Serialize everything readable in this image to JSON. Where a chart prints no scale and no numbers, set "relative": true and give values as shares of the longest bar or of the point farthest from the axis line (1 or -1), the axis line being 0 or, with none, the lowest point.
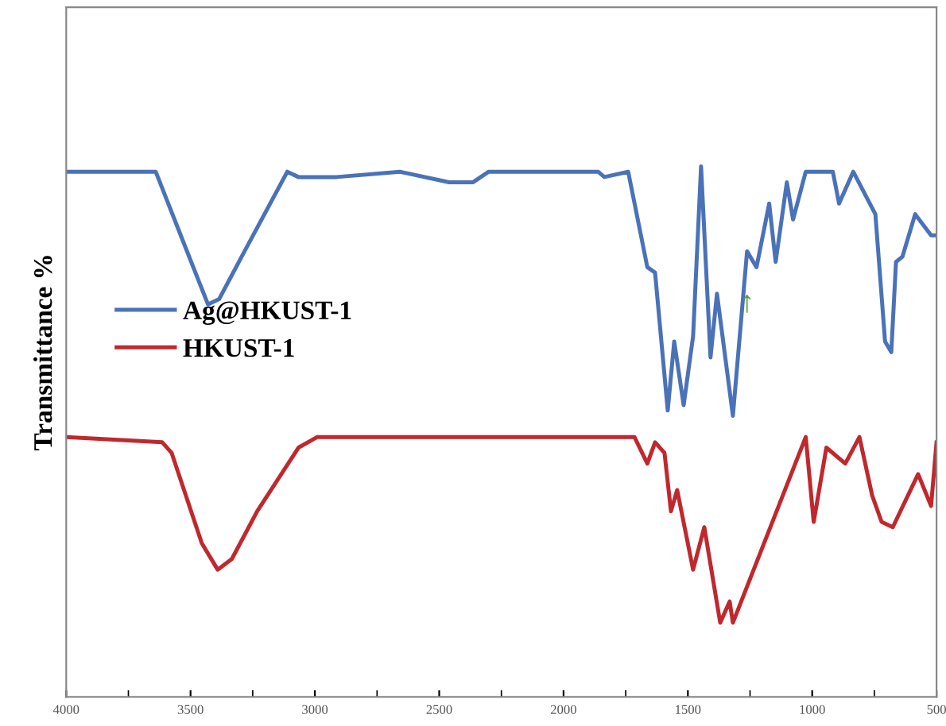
{
  "chart_data": {
    "type": "line",
    "ylabel": "Transmittance %",
    "relative": true,
    "tick_labels": "x",
    "legend": "center left",
    "grid": false,
    "xlim": [
      4000,
      500
    ],
    "xticks": [
      4000,
      3500,
      3000,
      2500,
      2000,
      1500,
      1000,
      500
    ],
    "annotations": [
      {
        "text": "↑",
        "x": 1262,
        "y": 0.74
      }
    ],
    "series": [
      {
        "name": "Ag@HKUST-1",
        "color": "#4a72b8",
        "x": [
          4000,
          3640,
          3531,
          3430,
          3385,
          3283,
          3111,
          3066,
          2913,
          2658,
          2460,
          2365,
          2301,
          1861,
          1836,
          1740,
          1663,
          1632,
          1581,
          1555,
          1517,
          1479,
          1447,
          1409,
          1383,
          1319,
          1262,
          1224,
          1173,
          1147,
          1102,
          1077,
          1026,
          917,
          892,
          835,
          746,
          707,
          682,
          663,
          637,
          586,
          522,
          500
        ],
        "values": [
          0.99,
          0.99,
          0.86,
          0.74,
          0.75,
          0.84,
          0.99,
          0.98,
          0.98,
          0.99,
          0.97,
          0.97,
          0.99,
          0.99,
          0.98,
          0.99,
          0.81,
          0.8,
          0.54,
          0.67,
          0.55,
          0.68,
          1.0,
          0.64,
          0.76,
          0.53,
          0.84,
          0.81,
          0.93,
          0.82,
          0.97,
          0.9,
          0.99,
          0.99,
          0.93,
          0.99,
          0.91,
          0.67,
          0.65,
          0.82,
          0.83,
          0.91,
          0.87,
          0.87
        ]
      },
      {
        "name": "HKUST-1",
        "color": "#c0282d",
        "x": [
          4000,
          3614,
          3576,
          3455,
          3391,
          3334,
          3232,
          3066,
          2990,
          1715,
          1663,
          1632,
          1594,
          1568,
          1543,
          1479,
          1434,
          1370,
          1332,
          1319,
          1026,
          994,
          943,
          867,
          810,
          759,
          721,
          676,
          574,
          522,
          500
        ],
        "values": [
          0.49,
          0.48,
          0.46,
          0.29,
          0.24,
          0.26,
          0.35,
          0.47,
          0.49,
          0.49,
          0.44,
          0.48,
          0.46,
          0.35,
          0.39,
          0.24,
          0.32,
          0.14,
          0.18,
          0.14,
          0.49,
          0.33,
          0.47,
          0.44,
          0.49,
          0.38,
          0.33,
          0.32,
          0.42,
          0.36,
          0.48
        ]
      }
    ]
  }
}
